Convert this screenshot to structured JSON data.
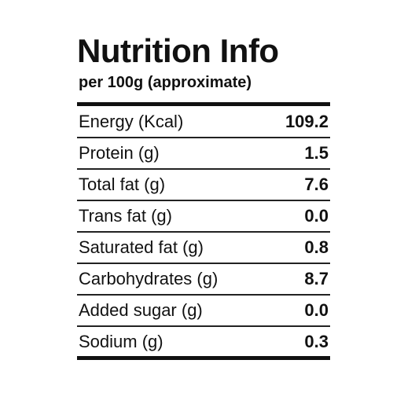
{
  "header": {
    "title": "Nutrition Info",
    "subtitle": "per 100g (approximate)"
  },
  "table": {
    "rows": [
      [
        "Energy (Kcal)",
        "109.2"
      ],
      [
        "Protein (g)",
        "1.5"
      ],
      [
        "Total fat (g)",
        "7.6"
      ],
      [
        "Trans fat (g)",
        "0.0"
      ],
      [
        "Saturated fat (g)",
        "0.8"
      ],
      [
        "Carbohydrates (g)",
        "8.7"
      ],
      [
        "Added sugar (g)",
        "0.0"
      ],
      [
        "Sodium (g)",
        "0.3"
      ]
    ]
  }
}
